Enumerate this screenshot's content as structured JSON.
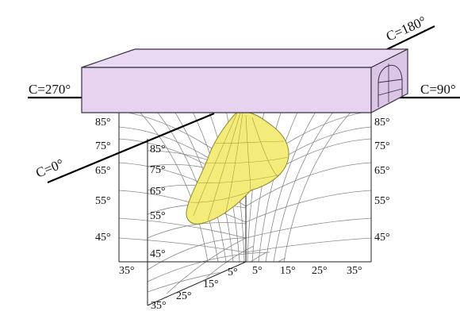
{
  "c_planes": {
    "c0": "C=0°",
    "c90": "C=90°",
    "c180": "C=180°",
    "c270": "C=270°"
  },
  "angles": {
    "left": [
      "85°",
      "75°",
      "65°",
      "55°",
      "45°"
    ],
    "right": [
      "85°",
      "75°",
      "65°",
      "55°",
      "45°"
    ],
    "inner": [
      "85°",
      "75°",
      "65°",
      "55°",
      "45°"
    ],
    "bottom_right": [
      "5°",
      "15°",
      "25°",
      "35°"
    ],
    "bottom_left": "35°",
    "front": [
      "5°",
      "15°",
      "25°",
      "35°"
    ]
  },
  "colors": {
    "luminaire_fill": "#e6d3ef",
    "luminaire_stroke": "#3b3045",
    "intensity_fill": "#f3ec7a",
    "intensity_stroke": "#9a8f2a",
    "grid": "#7a7a7a",
    "axis": "#000000"
  }
}
